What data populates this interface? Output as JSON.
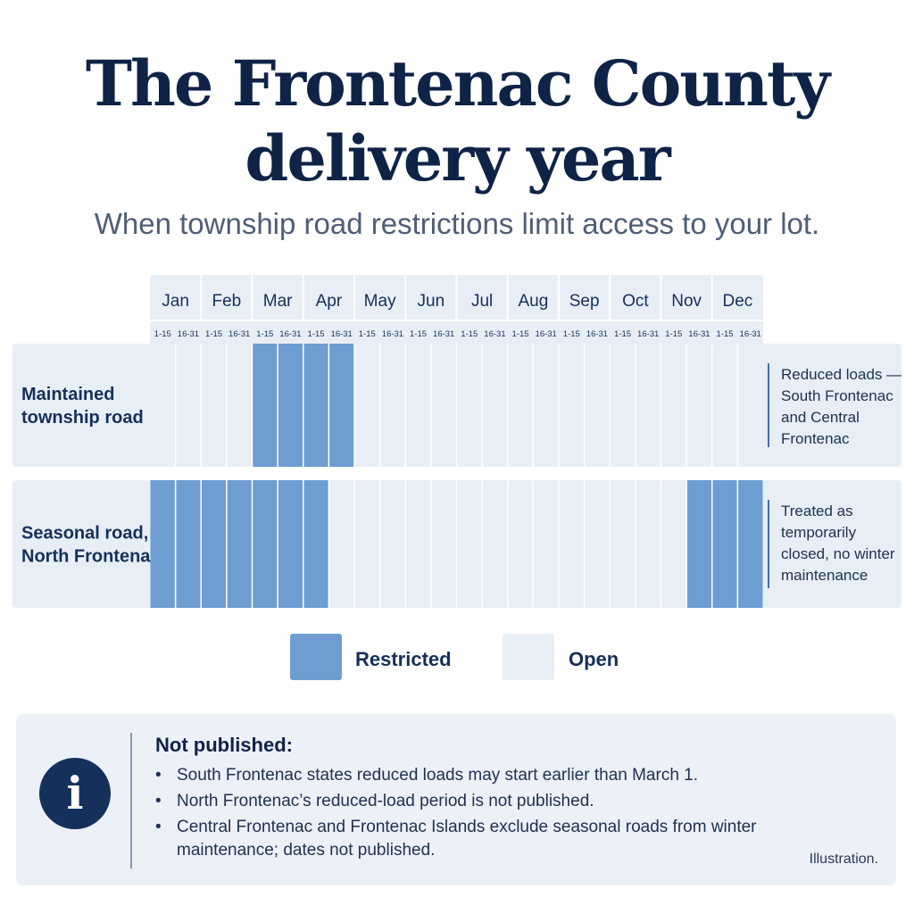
{
  "header": {
    "title_line1": "The Frontenac County",
    "title_line2": "delivery year",
    "subtitle": "When township road restrictions limit access to your lot."
  },
  "chart_data": {
    "type": "gantt",
    "months": [
      "Jan",
      "Feb",
      "Mar",
      "Apr",
      "May",
      "Jun",
      "Jul",
      "Aug",
      "Sep",
      "Oct",
      "Nov",
      "Dec"
    ],
    "halves": [
      "1-15",
      "16-31"
    ],
    "rows": [
      {
        "label_lines": [
          "Maintained",
          "township road"
        ],
        "restricted": [
          0,
          0,
          0,
          0,
          1,
          1,
          1,
          1,
          0,
          0,
          0,
          0,
          0,
          0,
          0,
          0,
          0,
          0,
          0,
          0,
          0,
          0,
          0,
          0
        ],
        "note_lines": [
          "Reduced loads —",
          "South Frontenac",
          "and Central",
          "Frontenac"
        ]
      },
      {
        "label_lines": [
          "Seasonal road,",
          "North Frontenac"
        ],
        "restricted": [
          1,
          1,
          1,
          1,
          1,
          1,
          1,
          0,
          0,
          0,
          0,
          0,
          0,
          0,
          0,
          0,
          0,
          0,
          0,
          0,
          0,
          1,
          1,
          1
        ],
        "note_lines": [
          "Treated as",
          "temporarily",
          "closed, no winter",
          "maintenance"
        ]
      }
    ],
    "legend": [
      {
        "label": "Restricted",
        "color": "#6e9dd2"
      },
      {
        "label": "Open",
        "color": "#e8eef6"
      }
    ],
    "colors": {
      "restricted": "#6e9dd2",
      "open": "#e8eef6",
      "row_background": "#e8eef6",
      "header_background": "#e8eef6"
    }
  },
  "info": {
    "icon": "info-icon",
    "heading": "Not published:",
    "items": [
      "South Frontenac states reduced loads may start earlier than March 1.",
      "North Frontenac’s reduced-load period is not published.",
      "Central Frontenac and Frontenac Islands exclude seasonal roads from winter maintenance; dates not published."
    ],
    "footnote": "Illustration."
  }
}
